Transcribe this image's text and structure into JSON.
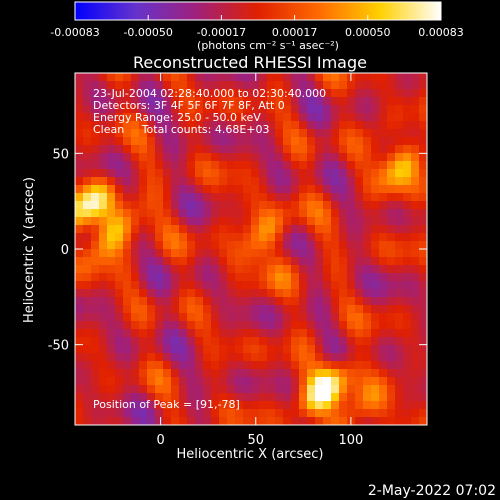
{
  "chart_data": {
    "type": "heatmap",
    "title": "Reconstructed RHESSI Image",
    "xlabel": "Heliocentric X (arcsec)",
    "ylabel": "Heliocentric Y (arcsec)",
    "xlim": [
      -45,
      140
    ],
    "ylim": [
      -92,
      92
    ],
    "x_ticks": [
      {
        "value": 0,
        "label": "0"
      },
      {
        "value": 50,
        "label": "50"
      },
      {
        "value": 100,
        "label": "100"
      }
    ],
    "y_ticks": [
      {
        "value": 50,
        "label": "50"
      },
      {
        "value": 0,
        "label": "0"
      },
      {
        "value": -50,
        "label": "-50"
      }
    ],
    "colorbar": {
      "range": [
        -0.00083,
        0.00083
      ],
      "tick_labels": [
        "-0.00083",
        "-0.00050",
        "-0.00017",
        "0.00017",
        "0.00050",
        "0.00083"
      ],
      "units": "(photons cm⁻² s⁻¹ asec⁻²)",
      "colormap": [
        "#0000ff",
        "#6633cc",
        "#a0207a",
        "#e02000",
        "#ff6a00",
        "#ffd000",
        "#ffffff"
      ]
    },
    "annotations": [
      "23-Jul-2004 02:28:40.000 to 02:30:40.000",
      "Detectors: 3F 4F 5F 6F 7F 8F, Att 0",
      "Energy Range: 25.0 - 50.0 keV",
      "Clean     Total counts: 4.68E+03"
    ],
    "peak_label": "Position of Peak = [91,-78]",
    "peak_position": [
      91,
      -78
    ],
    "source_regions": [
      {
        "x": -32,
        "y": 15,
        "intensity": 0.00083
      },
      {
        "x": 91,
        "y": -78,
        "intensity": 0.00083
      },
      {
        "x": 130,
        "y": 45,
        "intensity": 0.0005
      },
      {
        "x": 55,
        "y": 5,
        "intensity": 0.0004
      }
    ]
  },
  "footer": {
    "timestamp": "2-May-2022 07:02"
  }
}
